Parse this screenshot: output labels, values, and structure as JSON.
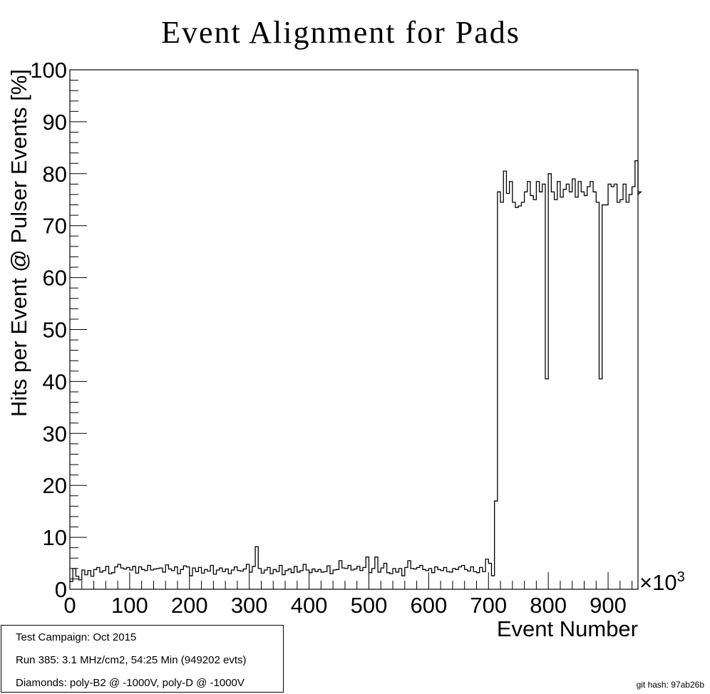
{
  "chart_data": {
    "type": "step-histogram",
    "title": "Event Alignment for Pads",
    "xlabel": "Event Number",
    "ylabel": "Hits per Event @ Pulser Events [%]",
    "x_exponent_label": "×10",
    "x_exponent_power": "3",
    "xlim": [
      0,
      950
    ],
    "ylim": [
      0,
      100
    ],
    "x_ticks": [
      "0",
      "100",
      "200",
      "300",
      "400",
      "500",
      "600",
      "700",
      "800",
      "900"
    ],
    "y_ticks": [
      "0",
      "10",
      "20",
      "30",
      "40",
      "50",
      "60",
      "70",
      "80",
      "90",
      "100"
    ],
    "bin_width": 5,
    "values": [
      1.5,
      4.0,
      2.5,
      1.8,
      3.7,
      2.8,
      3.6,
      2.5,
      3.8,
      4.2,
      3.3,
      3.6,
      4.4,
      3.0,
      3.2,
      4.3,
      4.8,
      4.1,
      3.9,
      4.2,
      3.7,
      4.4,
      3.1,
      4.3,
      3.8,
      3.6,
      4.6,
      3.7,
      3.9,
      4.0,
      4.1,
      3.3,
      4.7,
      3.9,
      3.6,
      4.3,
      3.0,
      3.8,
      4.5,
      4.3,
      2.6,
      4.1,
      3.4,
      4.2,
      3.1,
      3.8,
      3.5,
      4.6,
      2.9,
      3.7,
      4.1,
      3.4,
      3.9,
      3.0,
      3.7,
      4.3,
      3.6,
      3.5,
      3.9,
      4.8,
      3.3,
      4.4,
      8.2,
      4.0,
      3.1,
      3.7,
      4.2,
      3.0,
      3.8,
      3.4,
      4.6,
      2.8,
      3.6,
      3.9,
      3.2,
      4.4,
      3.3,
      3.6,
      4.8,
      3.7,
      3.2,
      3.9,
      3.4,
      3.8,
      3.3,
      3.4,
      4.5,
      3.0,
      3.7,
      3.8,
      5.5,
      4.1,
      4.0,
      4.6,
      3.7,
      3.9,
      4.4,
      3.6,
      4.2,
      6.2,
      3.2,
      4.0,
      6.2,
      3.3,
      4.1,
      5.0,
      3.2,
      3.0,
      4.0,
      3.3,
      4.0,
      2.6,
      4.2,
      5.5,
      4.0,
      3.9,
      4.2,
      4.6,
      3.8,
      3.6,
      4.0,
      3.2,
      4.3,
      3.8,
      3.6,
      4.2,
      3.4,
      3.3,
      4.0,
      3.8,
      4.3,
      4.6,
      3.8,
      3.5,
      4.3,
      3.4,
      3.2,
      4.2,
      3.4,
      5.8,
      5.0,
      2.6,
      17.0,
      76.5,
      74.5,
      80.5,
      76.2,
      78.5,
      74.5,
      73.5,
      73.8,
      74.5,
      76.5,
      78.5,
      75.8,
      75.0,
      78.5,
      76.5,
      78.0,
      40.5,
      80.0,
      76.5,
      75.0,
      78.5,
      75.5,
      77.0,
      78.0,
      76.5,
      79.0,
      75.5,
      78.5,
      76.5,
      75.8,
      77.5,
      78.5,
      76.5,
      74.5,
      40.5,
      74.0,
      74.0,
      78.0,
      77.5,
      78.0,
      74.5,
      75.0,
      78.0,
      74.5,
      76.0,
      77.5,
      82.5,
      76.0,
      76.5
    ]
  },
  "info_box": {
    "line1": "Test Campaign: Oct 2015",
    "line2": "Run 385: 3.1 MHz/cm2, 54:25 Min (949202 evts)",
    "line3": "Diamonds: poly-B2 @ -1000V, poly-D @ -1000V"
  },
  "footer": {
    "git_hash": "git hash: 97ab26b"
  }
}
